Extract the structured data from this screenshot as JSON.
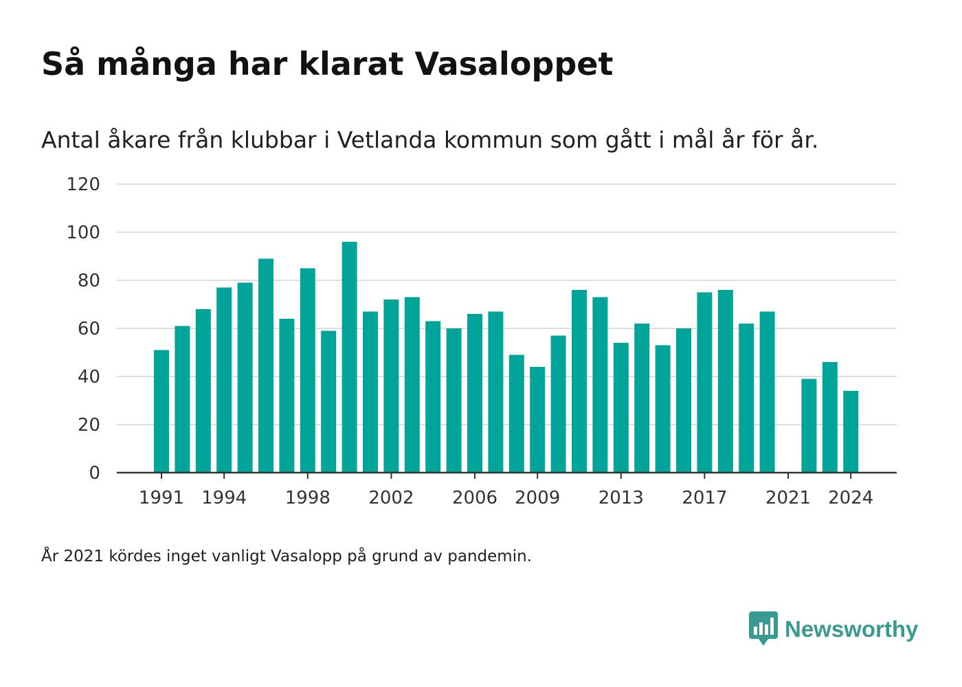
{
  "header": {
    "title": "Så många har klarat Vasaloppet",
    "subtitle": "Antal åkare från klubbar i Vetlanda kommun som gått i mål år för år."
  },
  "footer": {
    "note": "År 2021 kördes inget vanligt Vasalopp på grund av pandemin.",
    "brand": "Newsworthy",
    "brand_icon": "bar-chart-badge-icon"
  },
  "colors": {
    "bar": "#00a499",
    "grid": "#dedede",
    "axis": "#333333",
    "tick_text": "#333333",
    "brand": "#3a9a92"
  },
  "chart_data": {
    "type": "bar",
    "title": "Så många har klarat Vasaloppet",
    "subtitle": "Antal åkare från klubbar i Vetlanda kommun som gått i mål år för år.",
    "xlabel": "",
    "ylabel": "",
    "categories": [
      1991,
      1992,
      1993,
      1994,
      1995,
      1996,
      1997,
      1998,
      1999,
      2000,
      2001,
      2002,
      2003,
      2004,
      2005,
      2006,
      2007,
      2008,
      2009,
      2010,
      2011,
      2012,
      2013,
      2014,
      2015,
      2016,
      2017,
      2018,
      2019,
      2020,
      2021,
      2022,
      2023,
      2024
    ],
    "values": [
      51,
      61,
      68,
      77,
      79,
      89,
      64,
      85,
      59,
      96,
      67,
      72,
      73,
      63,
      60,
      66,
      67,
      49,
      44,
      57,
      76,
      73,
      54,
      62,
      53,
      60,
      75,
      76,
      62,
      67,
      null,
      39,
      46,
      34
    ],
    "x_tick_labels": [
      "1991",
      "1994",
      "1998",
      "2002",
      "2006",
      "2009",
      "2013",
      "2017",
      "2021",
      "2024"
    ],
    "y_ticks": [
      0,
      20,
      40,
      60,
      80,
      100,
      120
    ],
    "ylim": [
      0,
      120
    ],
    "grid": true,
    "legend": "none"
  }
}
